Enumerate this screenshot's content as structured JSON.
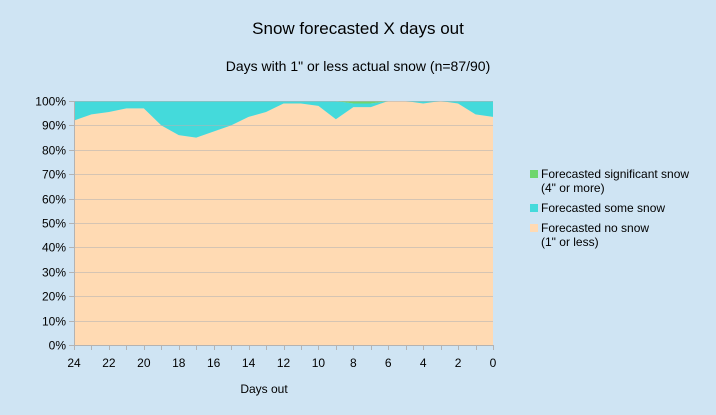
{
  "chart_data": {
    "type": "area",
    "stacked": true,
    "percent": true,
    "title": "Snow forecasted X days out",
    "subtitle": "Days with 1\" or less actual snow (n=87/90)",
    "xlabel": "Days out",
    "ylabel": "",
    "x": [
      24,
      23,
      22,
      21,
      20,
      19,
      18,
      17,
      16,
      15,
      14,
      13,
      12,
      11,
      10,
      9,
      8,
      7,
      6,
      5,
      4,
      3,
      2,
      1,
      0
    ],
    "x_ticks": [
      "24",
      "22",
      "20",
      "18",
      "16",
      "14",
      "12",
      "10",
      "8",
      "6",
      "4",
      "2",
      "0"
    ],
    "y_ticks": [
      "0%",
      "10%",
      "20%",
      "30%",
      "40%",
      "50%",
      "60%",
      "70%",
      "80%",
      "90%",
      "100%"
    ],
    "ylim": [
      0,
      100
    ],
    "x_reversed": true,
    "grid": "horizontal",
    "legend_position": "right",
    "series": [
      {
        "name": "Forecasted no snow\n(1\" or less)",
        "color": "#ffdab3",
        "values": [
          92,
          94.5,
          95.5,
          97,
          97,
          90,
          86,
          85,
          87.5,
          90,
          93.5,
          95.5,
          99,
          99,
          98,
          92.5,
          97.5,
          97.5,
          100,
          100,
          99,
          100,
          99,
          94.5,
          93.5
        ]
      },
      {
        "name": "Forecasted some snow",
        "color": "#44dadb",
        "values": [
          8,
          5.5,
          4.5,
          3,
          3,
          10,
          14,
          15,
          12.5,
          10,
          6.5,
          4.5,
          1,
          1,
          2,
          7.5,
          1.5,
          1.5,
          0,
          0,
          1,
          0,
          1,
          5.5,
          6.5
        ]
      },
      {
        "name": "Forecasted significant snow\n(4\" or more)",
        "color": "#6ed66e",
        "values": [
          0,
          0,
          0,
          0,
          0,
          0,
          0,
          0,
          0,
          0,
          0,
          0,
          0,
          0,
          0,
          0,
          1,
          1,
          0,
          0,
          0,
          0,
          0,
          0,
          0
        ]
      }
    ]
  }
}
